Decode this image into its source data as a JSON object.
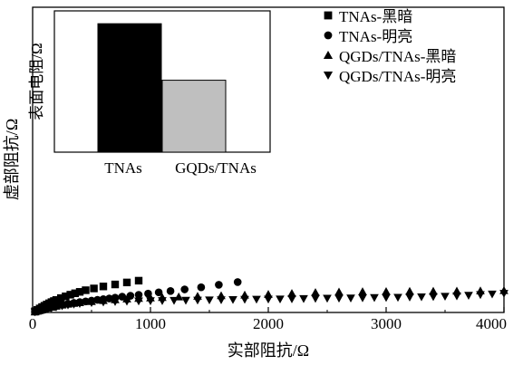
{
  "chart_data": [
    {
      "type": "scatter",
      "xlabel": "实部阻抗/Ω",
      "ylabel": "虚部阻抗/Ω",
      "xlim": [
        0,
        4000
      ],
      "x_ticks": [
        "0",
        "1000",
        "2000",
        "3000",
        "4000"
      ],
      "y_ticks_labeled": false,
      "grid": false,
      "legend_position": "top-right",
      "series": [
        {
          "name": "TNAs-黑暗",
          "marker": "square",
          "points": [
            [
              20,
              10
            ],
            [
              40,
              22
            ],
            [
              60,
              34
            ],
            [
              80,
              46
            ],
            [
              100,
              57
            ],
            [
              120,
              68
            ],
            [
              140,
              78
            ],
            [
              160,
              88
            ],
            [
              180,
              97
            ],
            [
              200,
              106
            ],
            [
              240,
              122
            ],
            [
              280,
              137
            ],
            [
              320,
              151
            ],
            [
              360,
              163
            ],
            [
              400,
              175
            ],
            [
              450,
              189
            ],
            [
              520,
              204
            ],
            [
              600,
              221
            ],
            [
              700,
              238
            ],
            [
              800,
              255
            ],
            [
              900,
              270
            ]
          ]
        },
        {
          "name": "TNAs-明亮",
          "marker": "circle",
          "points": [
            [
              20,
              6
            ],
            [
              40,
              13
            ],
            [
              60,
              20
            ],
            [
              80,
              27
            ],
            [
              100,
              33
            ],
            [
              130,
              41
            ],
            [
              160,
              49
            ],
            [
              200,
              57
            ],
            [
              250,
              66
            ],
            [
              300,
              74
            ],
            [
              350,
              81
            ],
            [
              400,
              88
            ],
            [
              450,
              94
            ],
            [
              500,
              101
            ],
            [
              550,
              107
            ],
            [
              600,
              113
            ],
            [
              650,
              119
            ],
            [
              700,
              126
            ],
            [
              760,
              134
            ],
            [
              830,
              142
            ],
            [
              900,
              150
            ],
            [
              980,
              160
            ],
            [
              1070,
              171
            ],
            [
              1170,
              182
            ],
            [
              1290,
              196
            ],
            [
              1430,
              214
            ],
            [
              1580,
              235
            ],
            [
              1740,
              258
            ]
          ]
        },
        {
          "name": "QGDs/TNAs-黑暗",
          "marker": "triangle-up",
          "points": [
            [
              20,
              5
            ],
            [
              40,
              11
            ],
            [
              60,
              17
            ],
            [
              80,
              23
            ],
            [
              100,
              29
            ],
            [
              130,
              37
            ],
            [
              160,
              45
            ],
            [
              200,
              54
            ],
            [
              250,
              63
            ],
            [
              300,
              71
            ],
            [
              350,
              78
            ],
            [
              400,
              84
            ],
            [
              500,
              93
            ],
            [
              600,
              102
            ],
            [
              700,
              109
            ],
            [
              800,
              115
            ],
            [
              900,
              120
            ],
            [
              1000,
              124
            ],
            [
              1100,
              128
            ],
            [
              1240,
              133
            ],
            [
              1400,
              138
            ],
            [
              1600,
              143
            ],
            [
              1800,
              148
            ],
            [
              2000,
              154
            ],
            [
              2200,
              162
            ],
            [
              2400,
              170
            ],
            [
              2600,
              174
            ],
            [
              2800,
              177
            ],
            [
              3000,
              178
            ],
            [
              3200,
              180
            ],
            [
              3400,
              181
            ],
            [
              3600,
              182
            ],
            [
              3800,
              184
            ],
            [
              4000,
              186
            ]
          ]
        },
        {
          "name": "QGDs/TNAs-明亮",
          "marker": "triangle-down",
          "points": [
            [
              20,
              4
            ],
            [
              40,
              9
            ],
            [
              60,
              14
            ],
            [
              80,
              19
            ],
            [
              100,
              24
            ],
            [
              130,
              31
            ],
            [
              160,
              38
            ],
            [
              200,
              46
            ],
            [
              250,
              55
            ],
            [
              300,
              63
            ],
            [
              350,
              70
            ],
            [
              400,
              76
            ],
            [
              500,
              83
            ],
            [
              600,
              88
            ],
            [
              700,
              92
            ],
            [
              800,
              95
            ],
            [
              900,
              97
            ],
            [
              1000,
              99
            ],
            [
              1100,
              100
            ],
            [
              1200,
              102
            ],
            [
              1300,
              103
            ],
            [
              1400,
              104
            ],
            [
              1500,
              106
            ],
            [
              1600,
              107
            ],
            [
              1700,
              109
            ],
            [
              1800,
              111
            ],
            [
              1900,
              112
            ],
            [
              2000,
              113
            ],
            [
              2100,
              114
            ],
            [
              2200,
              115
            ],
            [
              2300,
              117
            ],
            [
              2400,
              119
            ],
            [
              2500,
              120
            ],
            [
              2600,
              121
            ],
            [
              2700,
              122
            ],
            [
              2800,
              124
            ],
            [
              2900,
              126
            ],
            [
              3000,
              127
            ],
            [
              3100,
              128
            ],
            [
              3200,
              130
            ],
            [
              3300,
              132
            ],
            [
              3400,
              134
            ],
            [
              3500,
              137
            ],
            [
              3600,
              140
            ],
            [
              3700,
              145
            ],
            [
              3800,
              151
            ],
            [
              3900,
              156
            ],
            [
              4000,
              162
            ]
          ]
        }
      ]
    },
    {
      "type": "bar",
      "ylabel": "表面电阻/Ω",
      "categories": [
        "TNAs",
        "GQDs/TNAs"
      ],
      "values": [
        1.0,
        0.56
      ],
      "ylim": [
        0,
        1.1
      ],
      "colors": [
        "#000000",
        "#bfbfbf"
      ]
    }
  ]
}
